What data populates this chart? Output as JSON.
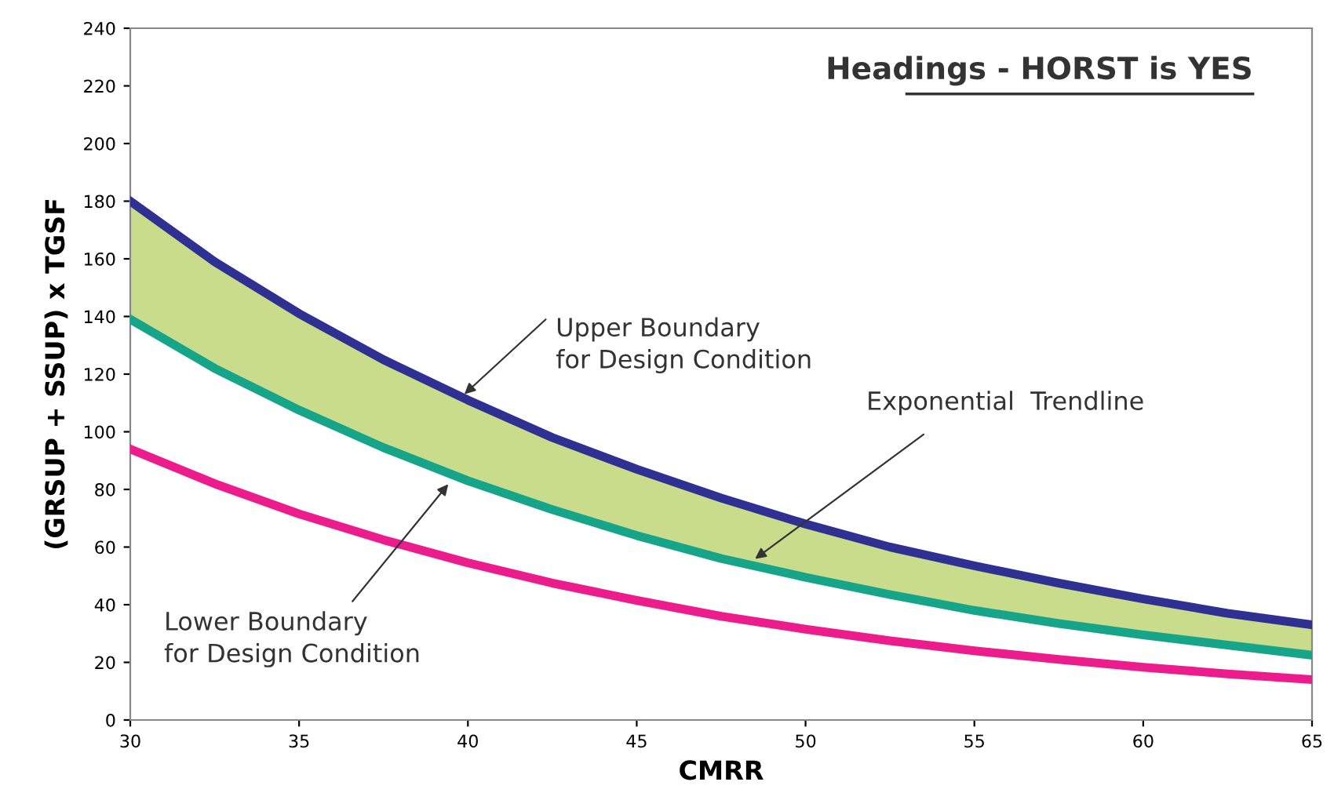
{
  "chart_data": {
    "type": "line",
    "title": "Headings - HORST is YES",
    "xlabel": "CMRR",
    "ylabel": "(GRSUP + SSUP) x TGSF",
    "x": [
      30,
      32.5,
      35,
      37.5,
      40,
      42.5,
      45,
      47.5,
      50,
      52.5,
      55,
      57.5,
      60,
      62.5,
      65
    ],
    "series": [
      {
        "color": "#2e3192",
        "values": [
          180,
          159,
          141,
          125,
          111,
          98,
          87,
          77,
          68,
          60,
          53.5,
          47.5,
          42,
          37,
          33
        ],
        "lower": [
          139,
          122,
          107.5,
          94.5,
          83,
          73,
          64,
          56,
          49.5,
          43.5,
          38,
          33.5,
          29.5,
          26,
          22.5
        ],
        "upper": [
          180,
          159,
          141,
          125,
          111,
          98,
          87,
          77,
          68,
          60,
          53.5,
          47.5,
          42,
          37,
          33
        ]
      },
      {
        "color": "#17a589",
        "values": [
          139,
          122,
          107.5,
          94.5,
          83,
          73,
          64,
          56,
          49.5,
          43.5,
          38,
          33.5,
          29.5,
          26,
          22.5
        ]
      },
      {
        "color": "#ec1c8c",
        "values": [
          94,
          82,
          71.5,
          62.5,
          54.5,
          47.5,
          41.5,
          36,
          31.5,
          27.5,
          24,
          21,
          18.3,
          16,
          14
        ]
      }
    ],
    "annotations": [
      {
        "text": "Upper Boundary\nfor Design Condition",
        "x": 39.8,
        "y": 112
      },
      {
        "text": "Exponential  Trendline",
        "x": 48.4,
        "y": 55
      },
      {
        "text": "Lower Boundary\nfor Design Condition",
        "x": 39.5,
        "y": 83
      }
    ],
    "xlim": [
      30,
      65
    ],
    "ylim": [
      0,
      240
    ],
    "xticks": [
      30,
      35,
      40,
      45,
      50,
      55,
      60,
      65
    ],
    "yticks": [
      0,
      20,
      40,
      60,
      80,
      100,
      120,
      140,
      160,
      180,
      200,
      220,
      240
    ],
    "grid": false,
    "legend": false,
    "marker": "none",
    "line_style": "solid"
  }
}
